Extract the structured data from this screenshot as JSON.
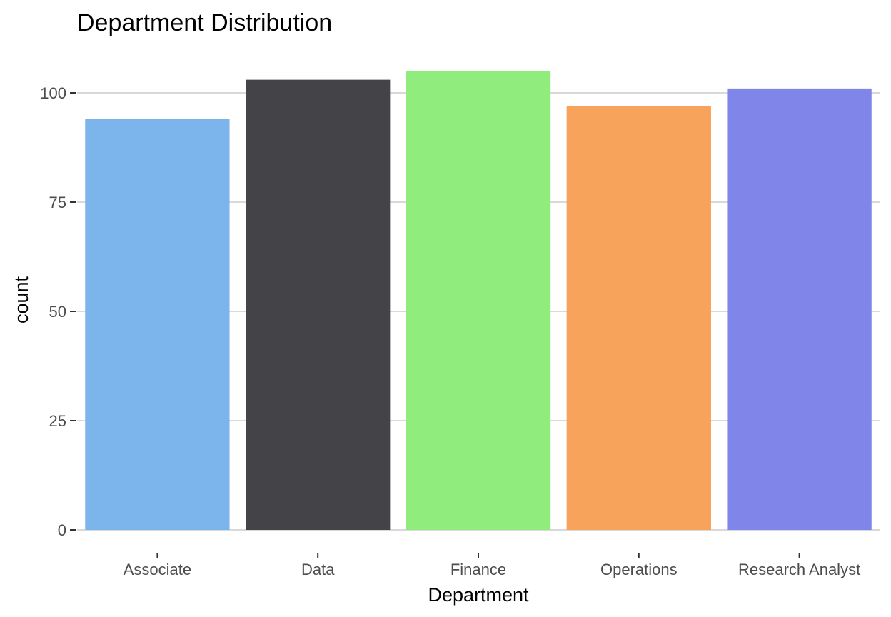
{
  "chart_data": {
    "type": "bar",
    "title": "Department Distribution",
    "xlabel": "Department",
    "ylabel": "count",
    "categories": [
      "Associate",
      "Data",
      "Finance",
      "Operations",
      "Research Analyst"
    ],
    "values": [
      94,
      103,
      105,
      97,
      101
    ],
    "colors": [
      "#7cb5ec",
      "#434348",
      "#90ed7d",
      "#f7a35c",
      "#8085e9"
    ],
    "ylim": [
      0,
      105
    ],
    "yticks": [
      0,
      25,
      50,
      75,
      100
    ],
    "grid": true,
    "legend": "none"
  }
}
